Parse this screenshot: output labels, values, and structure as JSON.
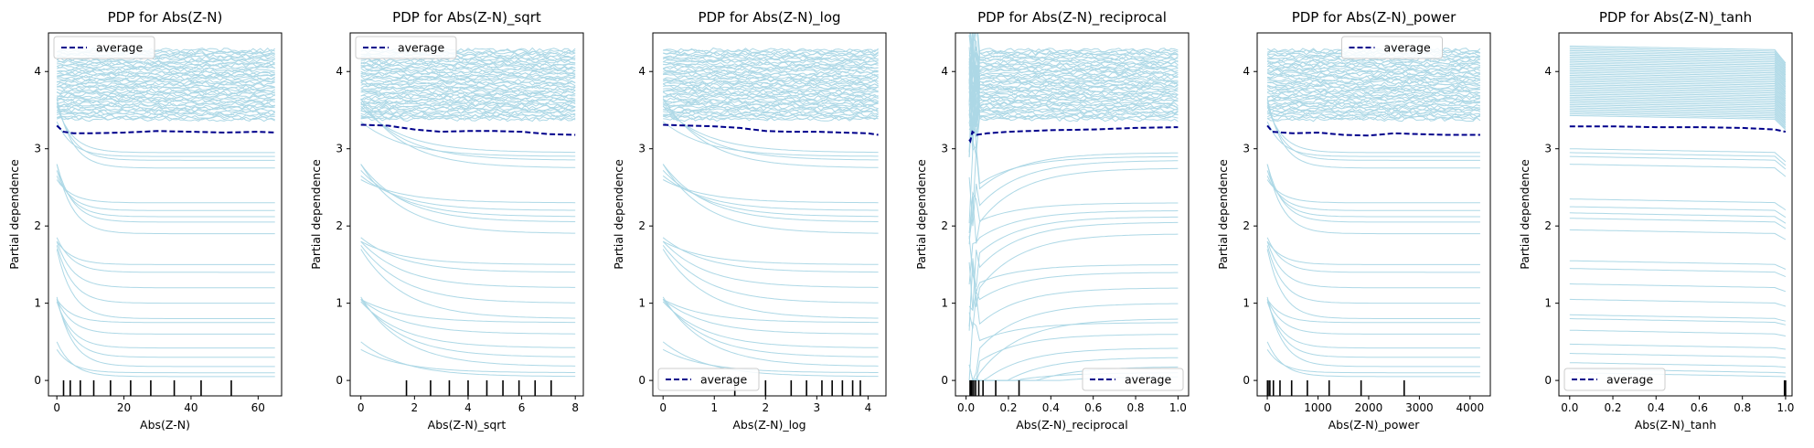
{
  "figure": {
    "ice_color": "#add8e6",
    "average_color": "#00008b",
    "legend_label": "average",
    "ylabel": "Partial dependence"
  },
  "chart_data": [
    {
      "type": "line",
      "title": "PDP for Abs(Z-N)",
      "xlabel": "Abs(Z-N)",
      "ylabel": "Partial dependence",
      "xlim": [
        -2.5,
        67
      ],
      "ylim": [
        -0.2,
        4.5
      ],
      "xticks": [
        0,
        20,
        40,
        60
      ],
      "yticks": [
        0,
        1,
        2,
        3,
        4
      ],
      "legend_loc": "upper left",
      "deciles": [
        2,
        4,
        7,
        11,
        16,
        22,
        28,
        35,
        43,
        52
      ],
      "average": {
        "x": [
          0,
          2,
          5,
          10,
          20,
          30,
          40,
          50,
          60,
          65
        ],
        "y": [
          3.3,
          3.22,
          3.2,
          3.2,
          3.21,
          3.23,
          3.22,
          3.21,
          3.22,
          3.21
        ]
      }
    },
    {
      "type": "line",
      "title": "PDP for Abs(Z-N)_sqrt",
      "xlabel": "Abs(Z-N)_sqrt",
      "ylabel": "Partial dependence",
      "xlim": [
        -0.4,
        8.3
      ],
      "ylim": [
        -0.2,
        4.5
      ],
      "xticks": [
        0,
        2,
        4,
        6,
        8
      ],
      "yticks": [
        0,
        1,
        2,
        3,
        4
      ],
      "legend_loc": "upper left",
      "deciles": [
        1.7,
        2.6,
        3.3,
        4.0,
        4.7,
        5.3,
        5.9,
        6.5,
        7.1
      ],
      "average": {
        "x": [
          0,
          1,
          2,
          3,
          4,
          5,
          6,
          7,
          8
        ],
        "y": [
          3.31,
          3.3,
          3.25,
          3.22,
          3.23,
          3.23,
          3.22,
          3.19,
          3.18
        ]
      }
    },
    {
      "type": "line",
      "title": "PDP for Abs(Z-N)_log",
      "xlabel": "Abs(Z-N)_log",
      "ylabel": "Partial dependence",
      "xlim": [
        -0.2,
        4.35
      ],
      "ylim": [
        -0.2,
        4.5
      ],
      "xticks": [
        0,
        1,
        2,
        3,
        4
      ],
      "yticks": [
        0,
        1,
        2,
        3,
        4
      ],
      "legend_loc": "lower left",
      "deciles": [
        1.4,
        2.0,
        2.5,
        2.8,
        3.1,
        3.3,
        3.5,
        3.7,
        3.85
      ],
      "average": {
        "x": [
          0,
          0.5,
          1,
          1.5,
          2,
          2.5,
          3,
          3.5,
          4,
          4.2
        ],
        "y": [
          3.31,
          3.3,
          3.29,
          3.27,
          3.23,
          3.22,
          3.22,
          3.21,
          3.2,
          3.18
        ]
      }
    },
    {
      "type": "line",
      "title": "PDP for Abs(Z-N)_reciprocal",
      "xlabel": "Abs(Z-N)_reciprocal",
      "ylabel": "Partial dependence",
      "xlim": [
        -0.05,
        1.05
      ],
      "ylim": [
        -0.2,
        4.5
      ],
      "xticks": [
        0.0,
        0.2,
        0.4,
        0.6,
        0.8,
        1.0
      ],
      "yticks": [
        0,
        1,
        2,
        3,
        4
      ],
      "legend_loc": "lower right",
      "deciles": [
        0.019,
        0.023,
        0.028,
        0.036,
        0.045,
        0.06,
        0.08,
        0.14,
        0.25
      ],
      "average": {
        "x": [
          0.015,
          0.02,
          0.03,
          0.05,
          0.1,
          0.2,
          0.4,
          0.6,
          0.8,
          1.0
        ],
        "y": [
          3.12,
          3.1,
          3.22,
          3.18,
          3.2,
          3.22,
          3.24,
          3.25,
          3.27,
          3.28
        ]
      }
    },
    {
      "type": "line",
      "title": "PDP for Abs(Z-N)_power",
      "xlabel": "Abs(Z-N)_power",
      "ylabel": "Partial dependence",
      "xlim": [
        -200,
        4400
      ],
      "ylim": [
        -0.2,
        4.5
      ],
      "xticks": [
        0,
        1000,
        2000,
        3000,
        4000
      ],
      "yticks": [
        0,
        1,
        2,
        3,
        4
      ],
      "legend_loc": "upper center",
      "deciles": [
        4,
        16,
        50,
        120,
        250,
        480,
        790,
        1220,
        1850,
        2700
      ],
      "average": {
        "x": [
          0,
          100,
          500,
          1000,
          1500,
          2000,
          2500,
          3000,
          3500,
          4200
        ],
        "y": [
          3.3,
          3.22,
          3.2,
          3.21,
          3.18,
          3.17,
          3.2,
          3.19,
          3.18,
          3.18
        ]
      }
    },
    {
      "type": "line",
      "title": "PDP for Abs(Z-N)_tanh",
      "xlabel": "Abs(Z-N)_tanh",
      "ylabel": "Partial dependence",
      "xlim": [
        -0.05,
        1.03
      ],
      "ylim": [
        -0.2,
        4.5
      ],
      "xticks": [
        0.0,
        0.2,
        0.4,
        0.6,
        0.8,
        1.0
      ],
      "yticks": [
        0,
        1,
        2,
        3,
        4
      ],
      "legend_loc": "lower left",
      "deciles": [
        0.995,
        0.998,
        0.999,
        1.0
      ],
      "average": {
        "x": [
          0,
          0.2,
          0.4,
          0.6,
          0.8,
          0.95,
          1.0
        ],
        "y": [
          3.29,
          3.29,
          3.28,
          3.28,
          3.27,
          3.25,
          3.22
        ]
      }
    }
  ]
}
